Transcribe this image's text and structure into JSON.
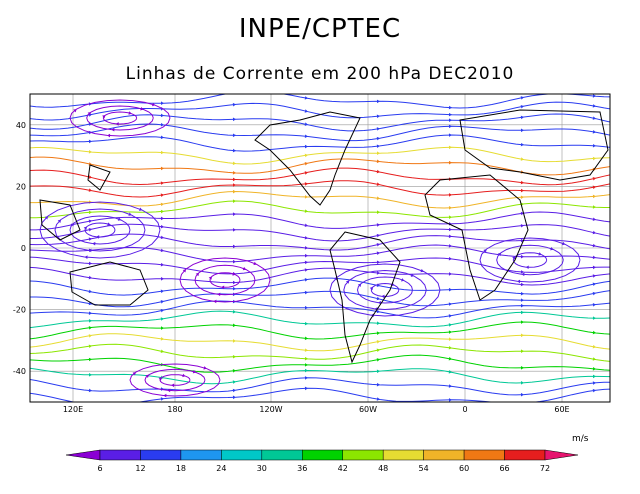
{
  "header": {
    "title": "INPE/CPTEC",
    "subtitle": "Linhas de Corrente em 200 hPa DEC2010"
  },
  "map": {
    "lat_labels": [
      "40",
      "20",
      "0",
      "-20",
      "-40"
    ],
    "lon_labels": [
      "120E",
      "180",
      "120W",
      "60W",
      "0",
      "60E"
    ]
  },
  "colorbar": {
    "units": "m/s",
    "labels": [
      "6",
      "12",
      "18",
      "24",
      "30",
      "36",
      "42",
      "48",
      "54",
      "60",
      "66",
      "72"
    ],
    "colors": [
      "#8a00d4",
      "#5a1ee6",
      "#2a3cf0",
      "#1e96f0",
      "#00c8c8",
      "#00c896",
      "#00d200",
      "#8ce600",
      "#e6dc32",
      "#f0b428",
      "#f07814",
      "#e61e1e",
      "#e6146e"
    ]
  },
  "chart_data": {
    "type": "streamline-map",
    "title": "INPE/CPTEC",
    "subtitle": "Linhas de Corrente em 200 hPa DEC2010",
    "ylim": [
      -50,
      50
    ],
    "lat_ticks": [
      40,
      20,
      0,
      -20,
      -40
    ],
    "lon_ticks": [
      "120E",
      "180",
      "120W",
      "60W",
      "0",
      "60E"
    ],
    "colorbar_units": "m/s",
    "colorbar_levels": [
      6,
      12,
      18,
      24,
      30,
      36,
      42,
      48,
      54,
      60,
      66,
      72
    ]
  }
}
